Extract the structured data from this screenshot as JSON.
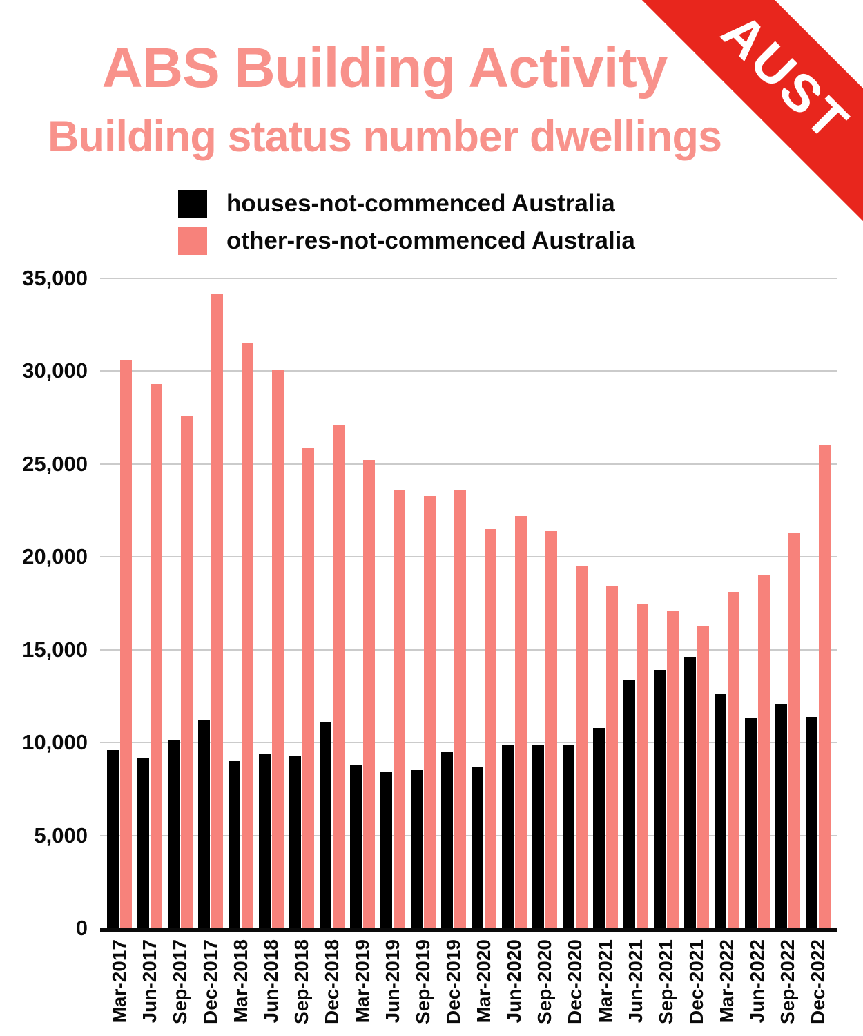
{
  "header": {
    "title": "ABS Building Activity",
    "subtitle": "Building status number dwellings",
    "banner": "AUST"
  },
  "legend": {
    "items": [
      {
        "label": "houses-not-commenced Australia",
        "color": "#000000"
      },
      {
        "label": "other-res-not-commenced Australia",
        "color": "#F7827B"
      }
    ]
  },
  "colors": {
    "title_salmon": "#F8928B",
    "ribbon_red": "#E8261D",
    "bar_black": "#000000",
    "bar_pink": "#F7827B",
    "gridline_gray": "#CBCBCB",
    "axis_black": "#0A0A0A"
  },
  "chart_data": {
    "type": "bar",
    "title": "ABS Building Activity",
    "subtitle": "Building status number dwellings",
    "categories": [
      "Mar-2017",
      "Jun-2017",
      "Sep-2017",
      "Dec-2017",
      "Mar-2018",
      "Jun-2018",
      "Sep-2018",
      "Dec-2018",
      "Mar-2019",
      "Jun-2019",
      "Sep-2019",
      "Dec-2019",
      "Mar-2020",
      "Jun-2020",
      "Sep-2020",
      "Dec-2020",
      "Mar-2021",
      "Jun-2021",
      "Sep-2021",
      "Dec-2021",
      "Mar-2022",
      "Jun-2022",
      "Sep-2022",
      "Dec-2022"
    ],
    "series": [
      {
        "name": "houses-not-commenced Australia",
        "color": "#000000",
        "values": [
          9600,
          9200,
          10100,
          11200,
          9000,
          9400,
          9300,
          11100,
          8800,
          8400,
          8500,
          9500,
          8700,
          9900,
          9900,
          9900,
          10800,
          13400,
          13900,
          14600,
          12600,
          11300,
          12100,
          11400
        ]
      },
      {
        "name": "other-res-not-commenced Australia",
        "color": "#F7827B",
        "values": [
          30600,
          29300,
          27600,
          34200,
          31500,
          30100,
          25900,
          27100,
          25200,
          23600,
          23300,
          23600,
          21500,
          22200,
          21400,
          19500,
          18400,
          17500,
          17100,
          16300,
          18100,
          19000,
          21300,
          26000
        ]
      }
    ],
    "xlabel": "",
    "ylabel": "",
    "ylim": [
      0,
      35000
    ],
    "ytick_step": 5000,
    "ytick_labels": [
      "0",
      "5,000",
      "10,000",
      "15,000",
      "20,000",
      "25,000",
      "30,000",
      "35,000"
    ],
    "grid": true,
    "legend_position": "top-left"
  }
}
